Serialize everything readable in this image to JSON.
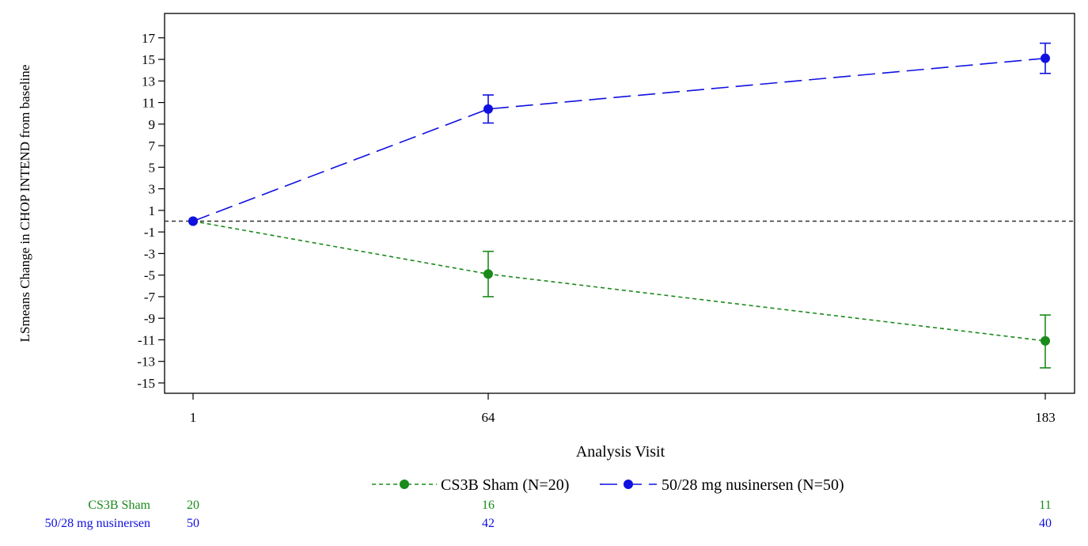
{
  "chart_data": {
    "type": "line",
    "title": "",
    "xlabel": "Analysis Visit",
    "ylabel": "LSmeans Change in CHOP INTEND from baseline",
    "x": [
      1,
      64,
      183
    ],
    "x_ticks": [
      "1",
      "64",
      "183"
    ],
    "ylim": [
      -16,
      19
    ],
    "y_ticks": [
      17,
      15,
      13,
      11,
      9,
      7,
      5,
      3,
      1,
      -1,
      -3,
      -5,
      -7,
      -9,
      -11,
      -13,
      -15
    ],
    "reference_line": 0,
    "grid": false,
    "legend_position": "bottom",
    "series": [
      {
        "name": "CS3B Sham (N=20)",
        "color": "#1a8a1a",
        "line_style": "short-dash",
        "values": [
          0,
          -4.9,
          -11.1
        ],
        "error_low": [
          0,
          -7.0,
          -13.6
        ],
        "error_high": [
          0,
          -2.8,
          -8.7
        ]
      },
      {
        "name": "50/28 mg nusinersen (N=50)",
        "color": "#1010e0",
        "line_style": "long-dash",
        "values": [
          0,
          10.4,
          15.1
        ],
        "error_low": [
          0,
          9.1,
          13.7
        ],
        "error_high": [
          0,
          11.7,
          16.5
        ]
      }
    ],
    "at_risk": [
      {
        "label": "CS3B Sham",
        "color": "#1a8a1a",
        "counts": [
          "20",
          "16",
          "11"
        ]
      },
      {
        "label": "50/28 mg nusinersen",
        "color": "#1010e0",
        "counts": [
          "50",
          "42",
          "40"
        ]
      }
    ]
  }
}
